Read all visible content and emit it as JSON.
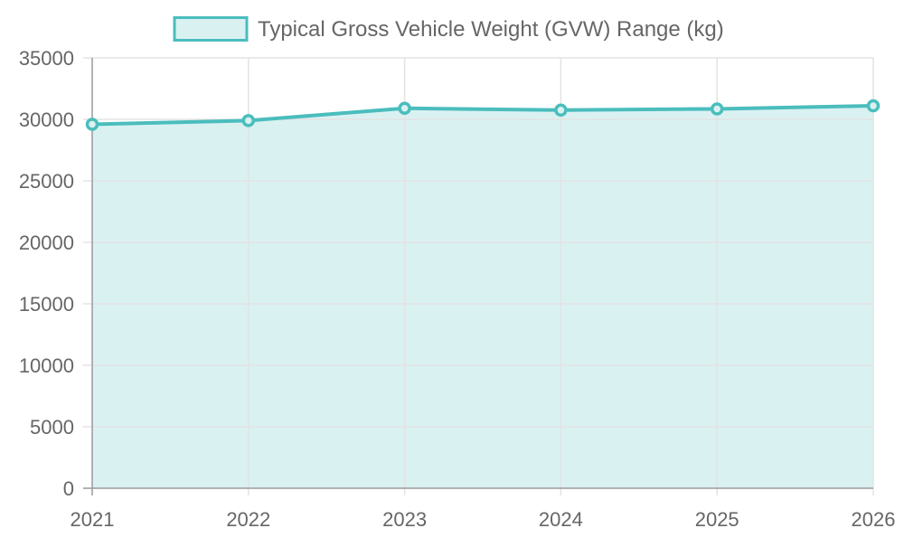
{
  "chart_data": {
    "type": "area",
    "title": "",
    "xlabel": "",
    "ylabel": "",
    "categories": [
      "2021",
      "2022",
      "2023",
      "2024",
      "2025",
      "2026"
    ],
    "series": [
      {
        "name": "Typical Gross Vehicle Weight (GVW) Range (kg)",
        "values": [
          29600,
          29900,
          30900,
          30750,
          30850,
          31100
        ],
        "line_color": "#4bbdbd",
        "fill_color": "#daf1f2"
      }
    ],
    "ylim": [
      0,
      35000
    ],
    "y_ticks": [
      0,
      5000,
      10000,
      15000,
      20000,
      25000,
      30000,
      35000
    ],
    "grid": true,
    "legend_position": "top-center"
  },
  "colors": {
    "grid": "#e3e3e3",
    "axis": "#9a9a9a",
    "tick_text": "#666666"
  }
}
